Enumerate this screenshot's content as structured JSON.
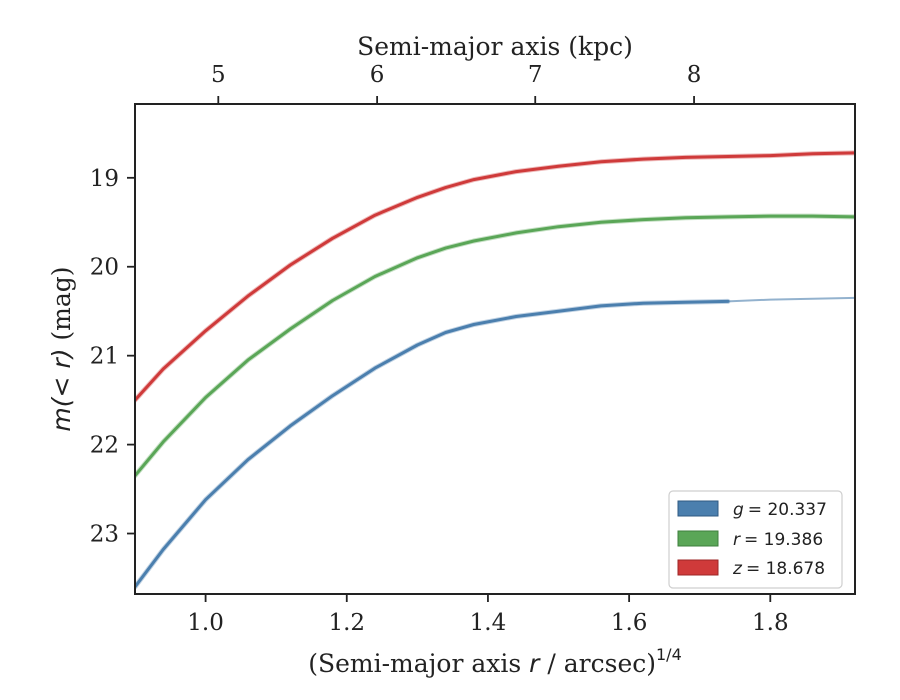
{
  "chart_data": {
    "type": "line",
    "xlabel": "(Semi-major axis r / arcsec)",
    "xlabel_pre": "(Semi-major axis ",
    "xlabel_var": "r",
    "xlabel_post": " / arcsec)",
    "xlabel_exp": "1/4",
    "ylabel": "m(< r) (mag)",
    "ylabel_math": "m(< r)",
    "ylabel_unit": " (mag)",
    "top_xlabel": "Semi-major axis (kpc)",
    "xlim": [
      0.9,
      1.92
    ],
    "ylim": [
      23.68,
      18.17
    ],
    "y_inverted": true,
    "x_ticks": [
      1.0,
      1.2,
      1.4,
      1.6,
      1.8
    ],
    "x_tick_labels": [
      "1.0",
      "1.2",
      "1.4",
      "1.6",
      "1.8"
    ],
    "y_ticks": [
      19,
      20,
      21,
      22,
      23
    ],
    "y_tick_labels": [
      "19",
      "20",
      "21",
      "22",
      "23"
    ],
    "top_ticks_kpc": [
      5,
      6,
      7,
      8
    ],
    "top_tick_labels": [
      "5",
      "6",
      "7",
      "8"
    ],
    "top_tick_x_positions": [
      1.018,
      1.243,
      1.467,
      1.692
    ],
    "legend_position": "lower-right",
    "series": [
      {
        "name": "g = 20.337",
        "band": "g",
        "label_value": "= 20.337",
        "color": "#4b7fae",
        "x": [
          0.9,
          0.94,
          1.0,
          1.06,
          1.12,
          1.18,
          1.24,
          1.3,
          1.34,
          1.38,
          1.44,
          1.5,
          1.56,
          1.62,
          1.68,
          1.74
        ],
        "y": [
          23.6,
          23.18,
          22.62,
          22.17,
          21.79,
          21.45,
          21.14,
          20.88,
          20.74,
          20.65,
          20.56,
          20.5,
          20.44,
          20.41,
          20.4,
          20.39
        ],
        "extension_x": [
          1.74,
          1.8,
          1.86,
          1.92
        ],
        "extension_y": [
          20.39,
          20.37,
          20.36,
          20.35
        ]
      },
      {
        "name": "r = 19.386",
        "band": "r",
        "label_value": "= 19.386",
        "color": "#5aa657",
        "x": [
          0.9,
          0.94,
          1.0,
          1.06,
          1.12,
          1.18,
          1.24,
          1.3,
          1.34,
          1.38,
          1.44,
          1.5,
          1.56,
          1.62,
          1.68,
          1.74,
          1.8,
          1.86,
          1.92
        ],
        "y": [
          22.35,
          21.97,
          21.47,
          21.05,
          20.7,
          20.38,
          20.11,
          19.9,
          19.79,
          19.71,
          19.62,
          19.55,
          19.5,
          19.47,
          19.45,
          19.44,
          19.43,
          19.43,
          19.44
        ]
      },
      {
        "name": "z = 18.678",
        "band": "z",
        "label_value": "= 18.678",
        "color": "#cf3a3a",
        "x": [
          0.9,
          0.94,
          1.0,
          1.06,
          1.12,
          1.18,
          1.24,
          1.3,
          1.34,
          1.38,
          1.44,
          1.5,
          1.56,
          1.62,
          1.68,
          1.74,
          1.8,
          1.86,
          1.92
        ],
        "y": [
          21.5,
          21.15,
          20.72,
          20.33,
          19.98,
          19.68,
          19.42,
          19.22,
          19.11,
          19.02,
          18.93,
          18.87,
          18.82,
          18.79,
          18.77,
          18.76,
          18.75,
          18.73,
          18.72
        ]
      }
    ]
  }
}
